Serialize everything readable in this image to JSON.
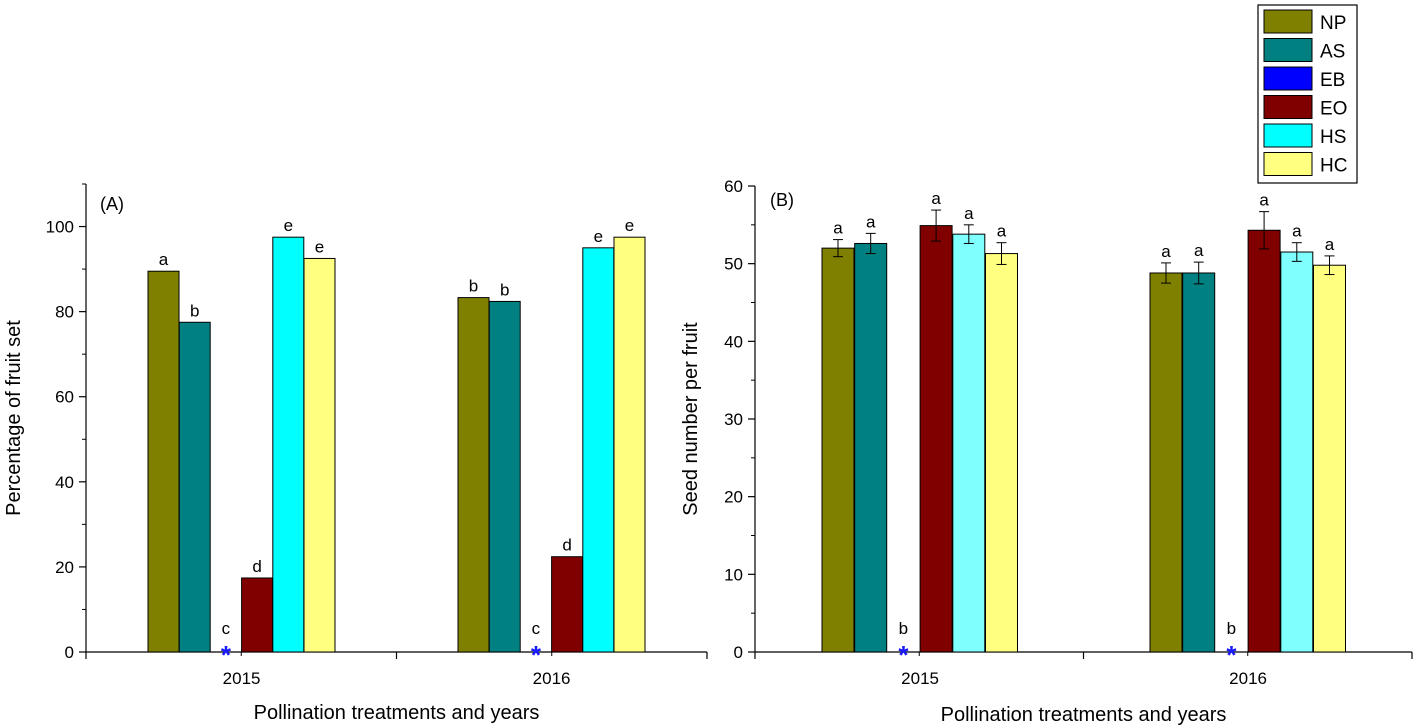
{
  "legend": {
    "entries": [
      {
        "name": "NP",
        "color": "#808000"
      },
      {
        "name": "AS",
        "color": "#008080"
      },
      {
        "name": "EB",
        "color": "#0000ff"
      },
      {
        "name": "EO",
        "color": "#800000"
      },
      {
        "name": "HS",
        "color": "#00ffff"
      },
      {
        "name": "HC",
        "color": "#ffff80"
      }
    ]
  },
  "chart_data": [
    {
      "type": "bar",
      "panel_label": "(A)",
      "xlabel": "Pollination treatments and years",
      "ylabel": "Percentage of fruit set",
      "ylim": [
        0,
        110
      ],
      "yticks": [
        0,
        20,
        40,
        60,
        80,
        100
      ],
      "categories": [
        "2015",
        "2016"
      ],
      "missing_marker": "*",
      "series": [
        {
          "name": "NP",
          "color": "#808000",
          "values": [
            89.5,
            83.3
          ],
          "labels": [
            "a",
            "b"
          ]
        },
        {
          "name": "AS",
          "color": "#008080",
          "values": [
            77.5,
            82.4
          ],
          "labels": [
            "b",
            "b"
          ]
        },
        {
          "name": "EB",
          "color": "#0000ff",
          "values": [
            0,
            0
          ],
          "labels": [
            "c",
            "c"
          ]
        },
        {
          "name": "EO",
          "color": "#800000",
          "values": [
            17.4,
            22.4
          ],
          "labels": [
            "d",
            "d"
          ]
        },
        {
          "name": "HS",
          "color": "#00ffff",
          "values": [
            97.5,
            95.0
          ],
          "labels": [
            "e",
            "e"
          ]
        },
        {
          "name": "HC",
          "color": "#ffff80",
          "values": [
            92.5,
            97.5
          ],
          "labels": [
            "e",
            "e"
          ]
        }
      ]
    },
    {
      "type": "bar",
      "panel_label": "(B)",
      "xlabel": "Pollination treatments and years",
      "ylabel": "Seed number per fruit",
      "ylim": [
        0,
        60
      ],
      "yticks": [
        0,
        10,
        20,
        30,
        40,
        50,
        60
      ],
      "categories": [
        "2015",
        "2016"
      ],
      "missing_marker": "*",
      "series": [
        {
          "name": "NP",
          "color": "#808000",
          "values": [
            52.0,
            48.8
          ],
          "errors": [
            1.1,
            1.3
          ],
          "labels": [
            "a",
            "a"
          ]
        },
        {
          "name": "AS",
          "color": "#008080",
          "values": [
            52.6,
            48.8
          ],
          "errors": [
            1.3,
            1.4
          ],
          "labels": [
            "a",
            "a"
          ]
        },
        {
          "name": "EB",
          "color": "#0000ff",
          "values": [
            0,
            0
          ],
          "errors": [
            0,
            0
          ],
          "labels": [
            "b",
            "b"
          ]
        },
        {
          "name": "EO",
          "color": "#800000",
          "values": [
            54.9,
            54.3
          ],
          "errors": [
            2.0,
            2.4
          ],
          "labels": [
            "a",
            "a"
          ]
        },
        {
          "name": "HS",
          "color": "#80ffff",
          "values": [
            53.8,
            51.5
          ],
          "errors": [
            1.2,
            1.2
          ],
          "labels": [
            "a",
            "a"
          ]
        },
        {
          "name": "HC",
          "color": "#ffff80",
          "values": [
            51.3,
            49.8
          ],
          "errors": [
            1.4,
            1.2
          ],
          "labels": [
            "a",
            "a"
          ]
        }
      ]
    }
  ]
}
